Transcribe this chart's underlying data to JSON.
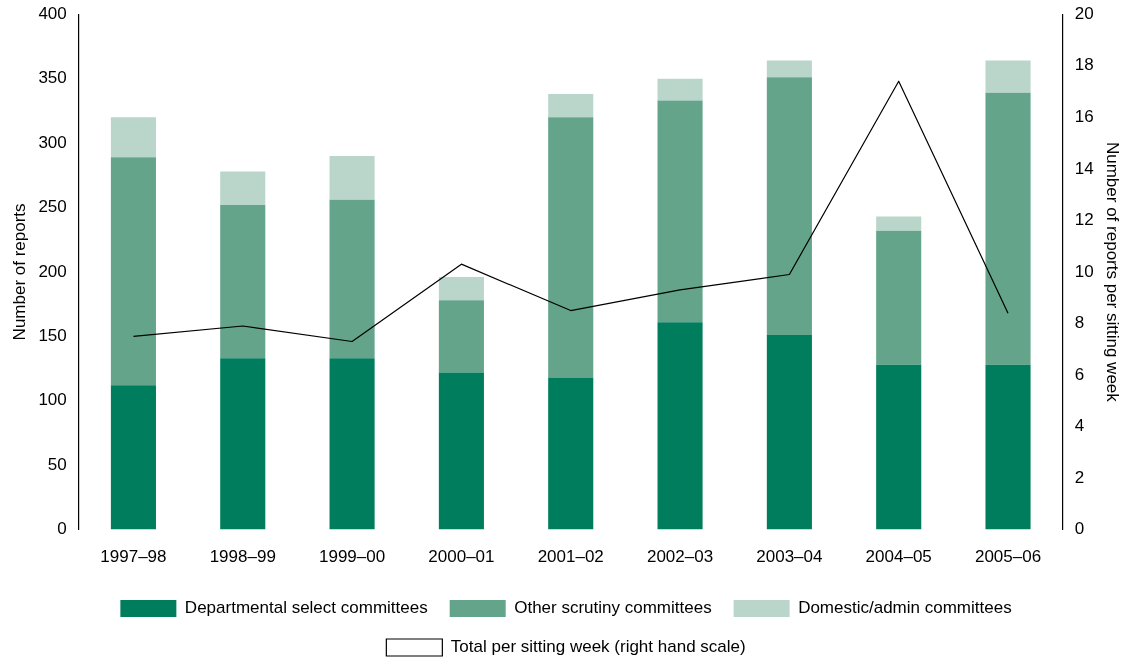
{
  "chart_data": {
    "type": "bar",
    "stacked": true,
    "categories": [
      "1997–98",
      "1998–99",
      "1999–00",
      "2000–01",
      "2001–02",
      "2002–03",
      "2003–04",
      "2004–05",
      "2005–06"
    ],
    "ylabel": "Number of reports",
    "y2label": "Number of reports per sitting week",
    "ylim": [
      0,
      400
    ],
    "yticks": [
      0,
      50,
      100,
      150,
      200,
      250,
      300,
      350,
      400
    ],
    "y2lim": [
      0,
      20
    ],
    "y2ticks": [
      0,
      2,
      4,
      6,
      8,
      10,
      12,
      14,
      16,
      18,
      20
    ],
    "grid": false,
    "legend": "bottom",
    "series": [
      {
        "name": "Departmental select committees",
        "color": "#007d5c",
        "values": [
          112,
          133,
          133,
          122,
          118,
          161,
          151,
          128,
          128
        ]
      },
      {
        "name": "Other scrutiny committees",
        "color": "#63a48b",
        "values": [
          177,
          119,
          123,
          56,
          202,
          172,
          200,
          104,
          211
        ]
      },
      {
        "name": "Domestic/admin committees",
        "color": "#bad6ca",
        "values": [
          31,
          26,
          34,
          18,
          18,
          17,
          13,
          11,
          25
        ]
      },
      {
        "name": "Total per sitting week (right hand scale)",
        "type": "line",
        "axis": "y2",
        "color": "#000000",
        "values": [
          7.5,
          7.9,
          7.3,
          10.3,
          8.5,
          9.3,
          9.9,
          17.4,
          8.4
        ]
      }
    ]
  }
}
